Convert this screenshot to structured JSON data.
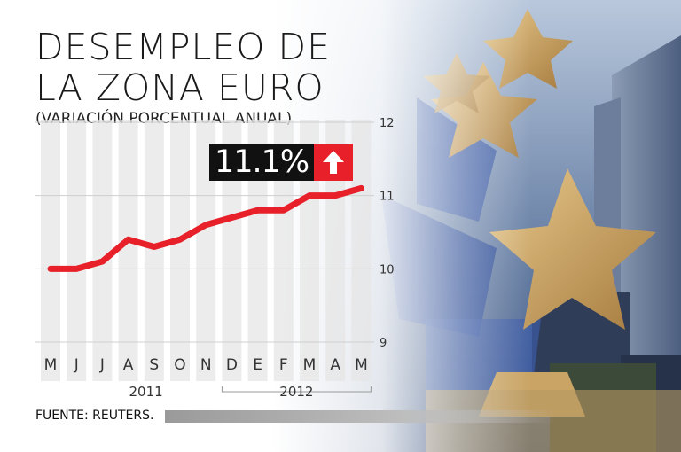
{
  "title_line1": "DESEMPLEO DE",
  "title_line2": "LA ZONA EURO",
  "subtitle": "(VARIACIÓN PORCENTUAL ANUAL)",
  "badge": {
    "value": "11.1%",
    "icon": "arrow-up-icon",
    "color": "#e8202a"
  },
  "source": "FUENTE: REUTERS.",
  "chart_data": {
    "type": "line",
    "title": "DESEMPLEO DE LA ZONA EURO",
    "subtitle": "(VARIACIÓN PORCENTUAL ANUAL)",
    "categories": [
      "M",
      "J",
      "J",
      "A",
      "S",
      "O",
      "N",
      "D",
      "E",
      "F",
      "M",
      "A",
      "M"
    ],
    "year_groups": [
      {
        "label": "2011",
        "start": 0,
        "end": 6
      },
      {
        "label": "2012",
        "start": 7,
        "end": 12
      }
    ],
    "series": [
      {
        "values": [
          10.0,
          10.0,
          10.1,
          10.4,
          10.3,
          10.4,
          10.6,
          10.7,
          10.8,
          10.8,
          11.0,
          11.0,
          11.1
        ]
      }
    ],
    "yticks": [
      9,
      10,
      11,
      12
    ],
    "ylim": [
      9,
      12
    ],
    "xlabel": "",
    "ylabel": "",
    "line_color": "#e8202a",
    "grid": true,
    "yaxis_side": "right"
  }
}
